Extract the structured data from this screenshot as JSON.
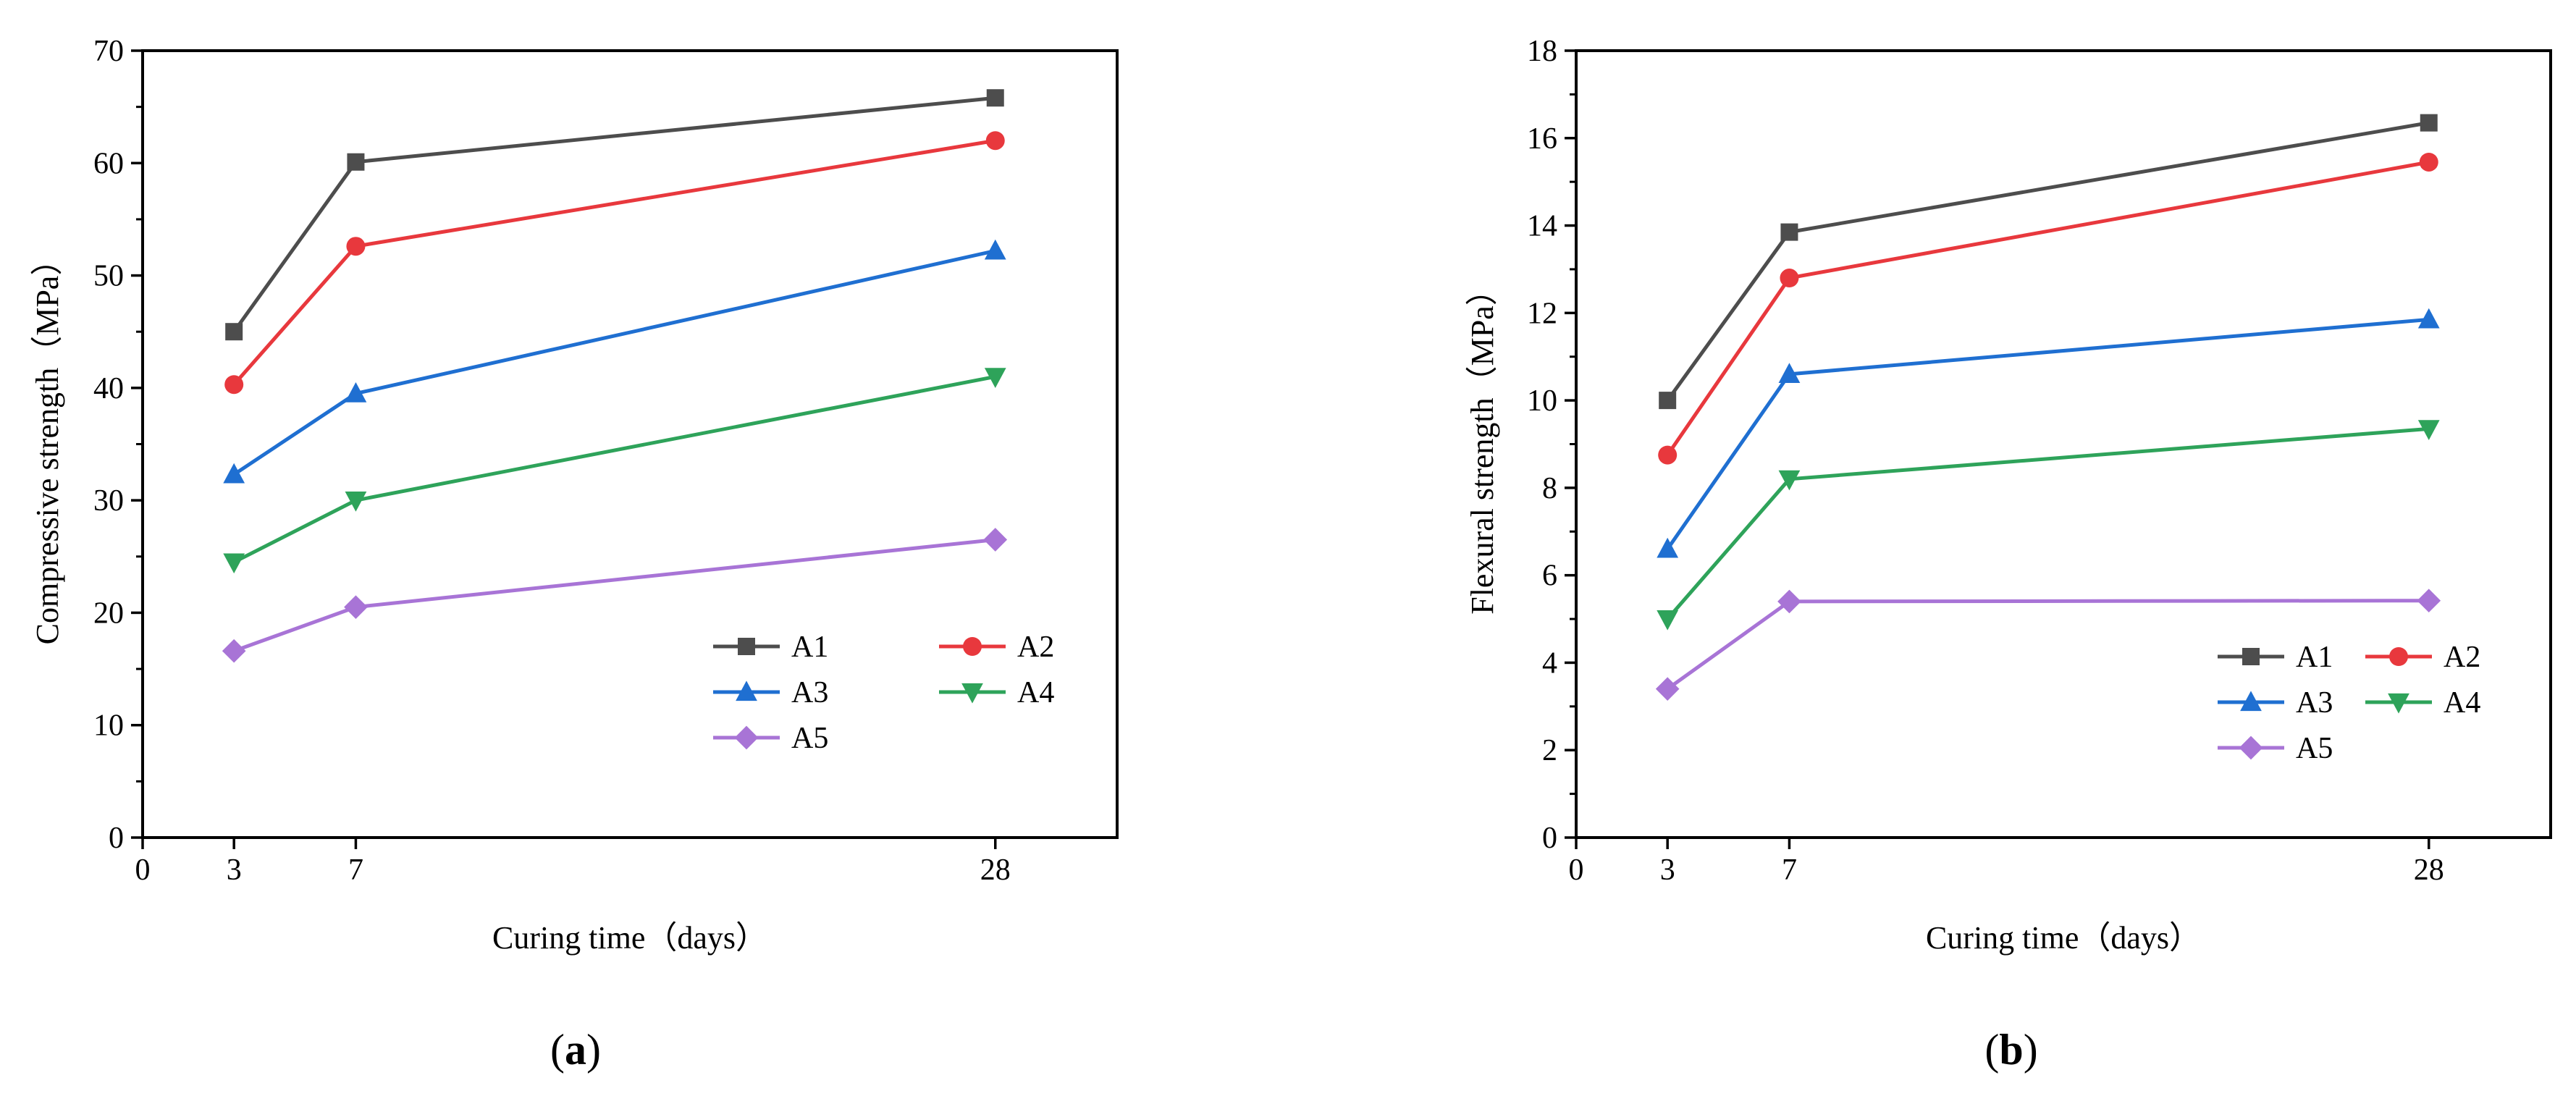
{
  "chart_data": [
    {
      "type": "line",
      "panel": "a",
      "panel_label": {
        "open": "(",
        "letter": "a",
        "close": ")"
      },
      "title": "",
      "xlabel": "Curing time（days）",
      "ylabel": "Compressive strength（MPa）",
      "xlim": [
        0,
        32
      ],
      "ylim": [
        0,
        70
      ],
      "xticks": [
        0,
        3,
        7,
        28
      ],
      "xtick_labels": [
        "0",
        "3",
        "7",
        "28"
      ],
      "yticks": [
        0,
        10,
        20,
        30,
        40,
        50,
        60,
        70
      ],
      "ytick_labels": [
        "0",
        "10",
        "20",
        "30",
        "40",
        "50",
        "60",
        "70"
      ],
      "grid": false,
      "legend_position": "bottom-right",
      "x": [
        3,
        7,
        28
      ],
      "series": [
        {
          "name": "A1",
          "values": [
            45.0,
            60.1,
            65.8
          ],
          "color": "#4d4d4d",
          "marker": "square"
        },
        {
          "name": "A2",
          "values": [
            40.3,
            52.6,
            62.0
          ],
          "color": "#e8383d",
          "marker": "circle"
        },
        {
          "name": "A3",
          "values": [
            32.3,
            39.5,
            52.2
          ],
          "color": "#1f6fd1",
          "marker": "triangle-up"
        },
        {
          "name": "A4",
          "values": [
            24.5,
            30.0,
            41.0
          ],
          "color": "#2ea35a",
          "marker": "triangle-down"
        },
        {
          "name": "A5",
          "values": [
            16.6,
            20.5,
            26.5
          ],
          "color": "#a874d6",
          "marker": "diamond"
        }
      ]
    },
    {
      "type": "line",
      "panel": "b",
      "panel_label": {
        "open": "(",
        "letter": "b",
        "close": ")"
      },
      "title": "",
      "xlabel": "Curing  time（days）",
      "ylabel": "Flexural strength（MPa）",
      "xlim": [
        0,
        32
      ],
      "ylim": [
        0,
        18
      ],
      "xticks": [
        0,
        3,
        7,
        28
      ],
      "xtick_labels": [
        "0",
        "3",
        "7",
        "28"
      ],
      "yticks": [
        0,
        2,
        4,
        6,
        8,
        10,
        12,
        14,
        16,
        18
      ],
      "ytick_labels": [
        "0",
        "2",
        "4",
        "6",
        "8",
        "10",
        "12",
        "14",
        "16",
        "18"
      ],
      "grid": false,
      "legend_position": "bottom-right",
      "x": [
        3,
        7,
        28
      ],
      "series": [
        {
          "name": "A1",
          "values": [
            10.0,
            13.85,
            16.35
          ],
          "color": "#4d4d4d",
          "marker": "square"
        },
        {
          "name": "A2",
          "values": [
            8.75,
            12.8,
            15.45
          ],
          "color": "#e8383d",
          "marker": "circle"
        },
        {
          "name": "A3",
          "values": [
            6.6,
            10.6,
            11.85
          ],
          "color": "#1f6fd1",
          "marker": "triangle-up"
        },
        {
          "name": "A4",
          "values": [
            5.0,
            8.2,
            9.35
          ],
          "color": "#2ea35a",
          "marker": "triangle-down"
        },
        {
          "name": "A5",
          "values": [
            3.4,
            5.4,
            5.42
          ],
          "color": "#a874d6",
          "marker": "diamond"
        }
      ]
    }
  ]
}
